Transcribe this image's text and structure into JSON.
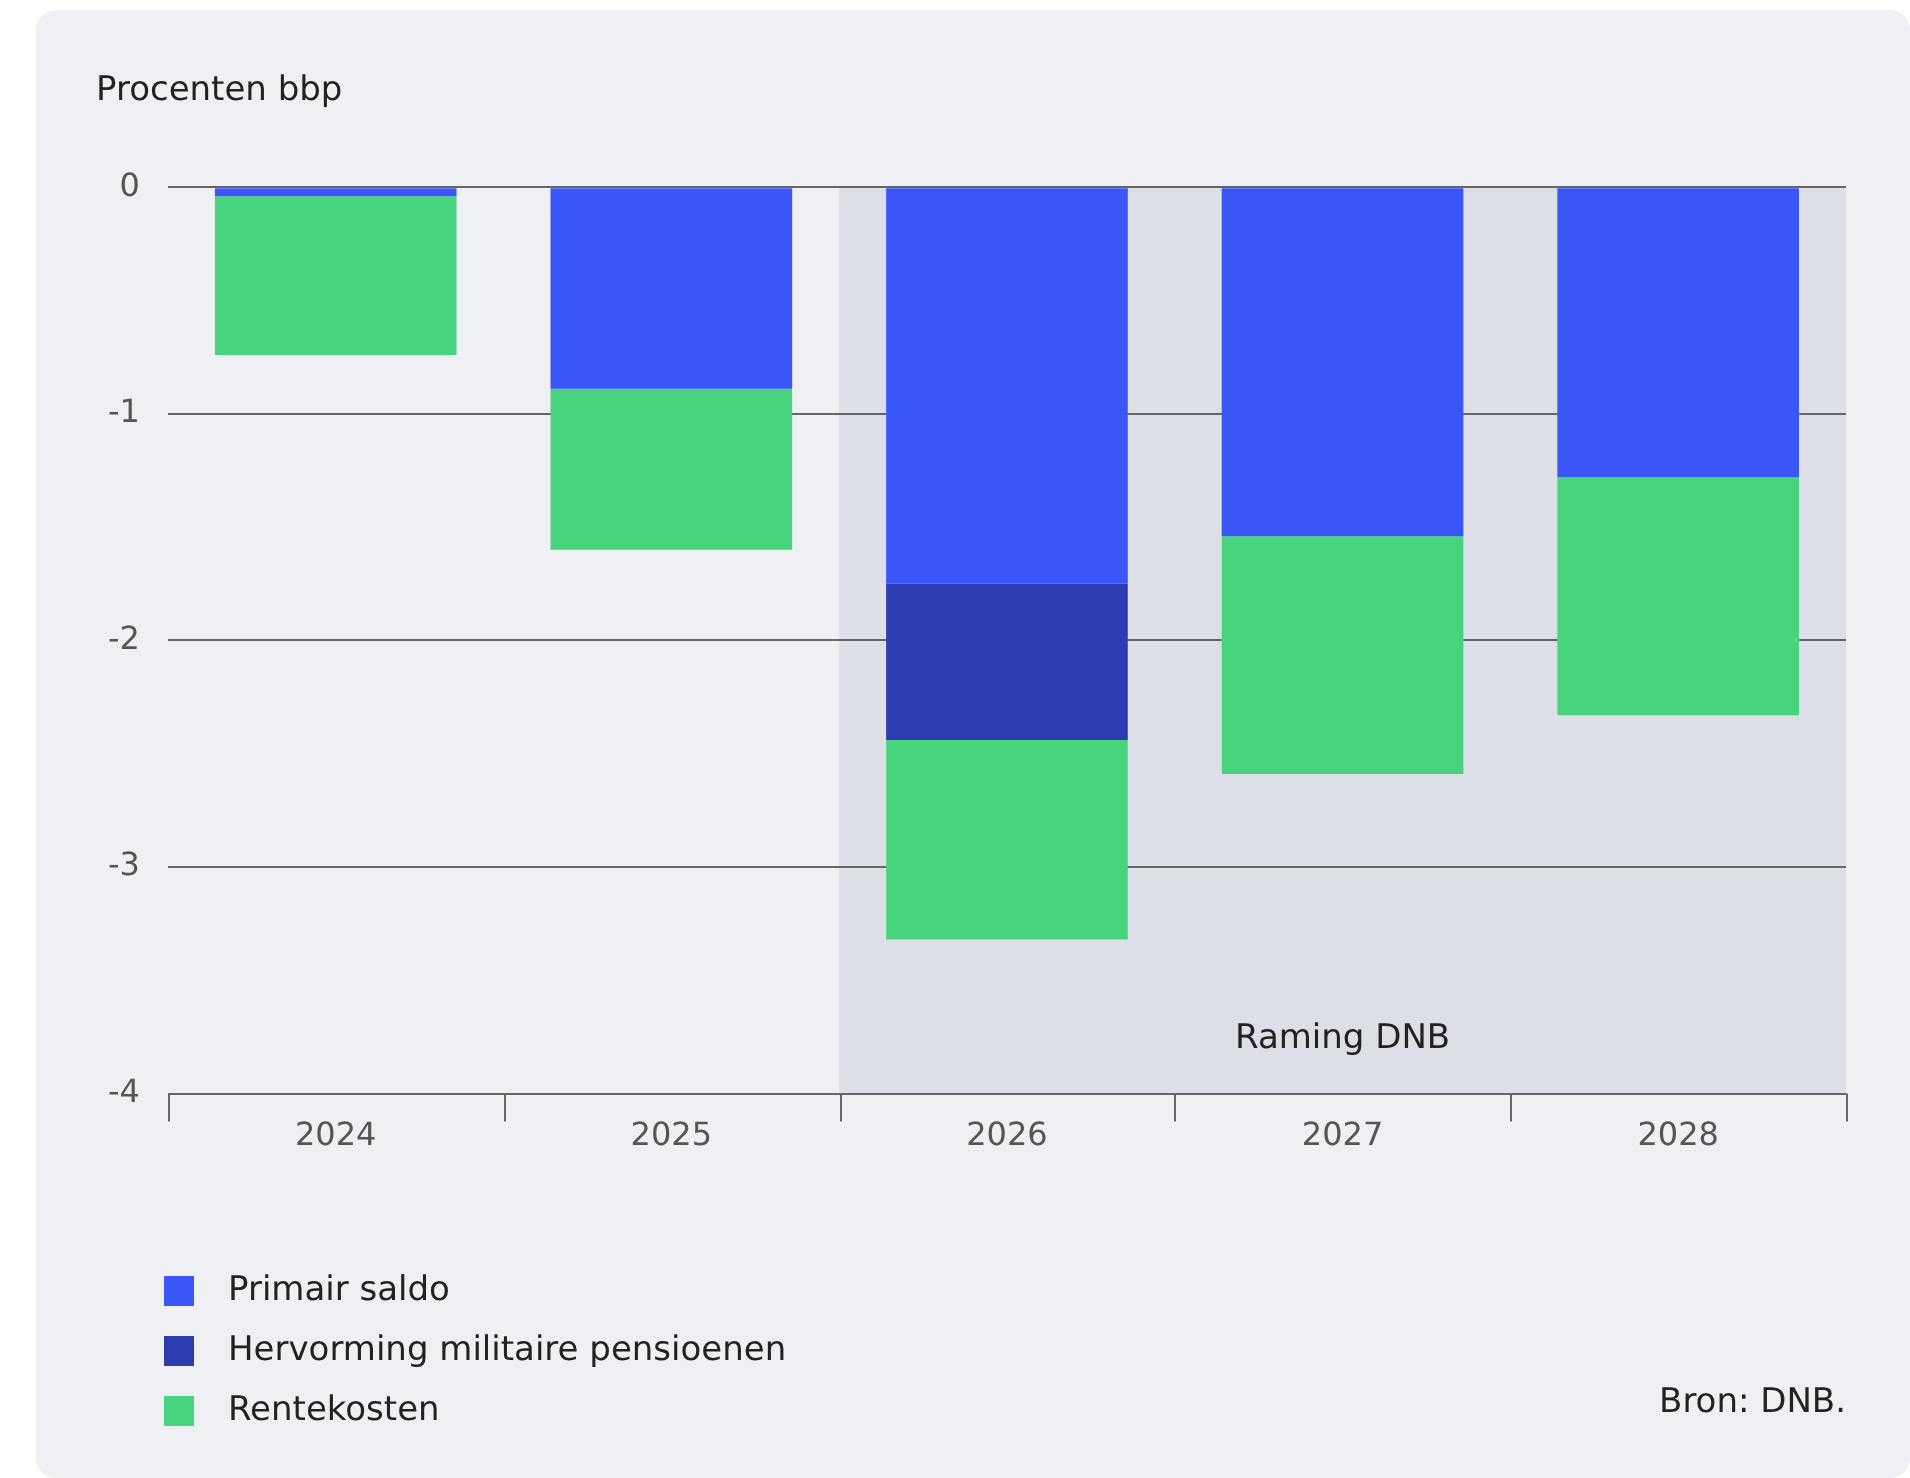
{
  "chart_data": {
    "type": "bar",
    "ylabel": "Procenten bbp",
    "categories": [
      "2024",
      "2025",
      "2026",
      "2027",
      "2028"
    ],
    "stacked": true,
    "series": [
      {
        "name": "Primair saldo",
        "color": "#3a56f6",
        "values": [
          -0.04,
          -0.89,
          -1.75,
          -1.54,
          -1.28
        ]
      },
      {
        "name": "Hervorming militaire pensioenen",
        "color": "#2a3cb0",
        "values": [
          null,
          null,
          -0.69,
          null,
          null
        ]
      },
      {
        "name": "Rentekosten",
        "color": "#48d47c",
        "values": [
          -0.7,
          -0.71,
          -0.88,
          -1.05,
          -1.05
        ]
      }
    ],
    "ylim": [
      -4,
      0
    ],
    "yticks": [
      0,
      -1,
      -2,
      -3,
      -4
    ],
    "grid": "y",
    "legend": "bottom left",
    "bands": [
      {
        "axis": "x",
        "from": "2026",
        "to": "2028",
        "label": "Raming DNB",
        "color": "#dcdfe6"
      }
    ],
    "annotations": [
      "Bron: DNB."
    ]
  }
}
